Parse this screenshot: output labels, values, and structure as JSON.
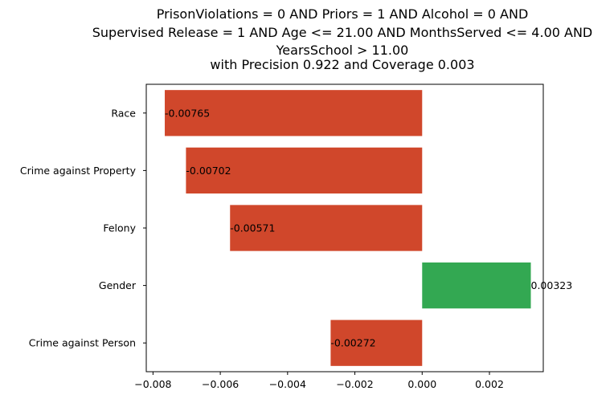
{
  "chart_data": {
    "type": "bar",
    "orientation": "horizontal",
    "title_lines": [
      "PrisonViolations = 0 AND Priors = 1 AND Alcohol = 0 AND",
      "Supervised Release = 1 AND Age <= 21.00 AND MonthsServed <= 4.00 AND",
      "YearsSchool > 11.00",
      "with Precision 0.922 and Coverage 0.003"
    ],
    "categories": [
      "Race",
      "Crime against Property",
      "Felony",
      "Gender",
      "Crime against Person"
    ],
    "values": [
      -0.00765,
      -0.00702,
      -0.00571,
      0.00323,
      -0.00272
    ],
    "value_labels": [
      "-0.00765",
      "-0.00702",
      "-0.00571",
      "0.00323",
      "-0.00272"
    ],
    "xlim": [
      -0.0082,
      0.0036
    ],
    "xticks": [
      -0.008,
      -0.006,
      -0.004,
      -0.002,
      0.0,
      0.002
    ],
    "xtick_labels": [
      "−0.008",
      "−0.006",
      "−0.004",
      "−0.002",
      "0.000",
      "0.002"
    ],
    "xlabel": "",
    "ylabel": "",
    "grid": false,
    "colors": {
      "negative": "#d0472b",
      "positive": "#33a852"
    }
  }
}
